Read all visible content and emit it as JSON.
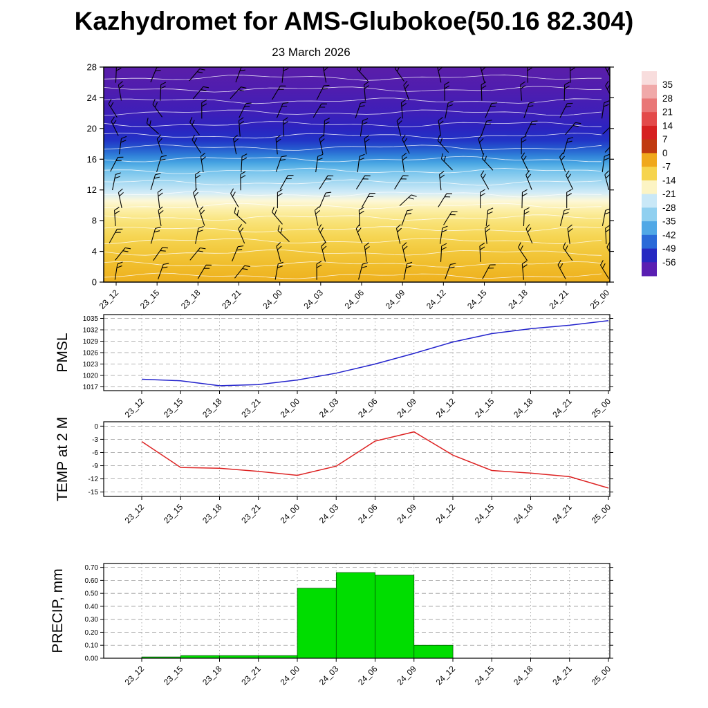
{
  "title": "Kazhydromet for AMS-Glubokoe(50.16 82.304)",
  "subtitle": "23 March 2026",
  "time_labels": [
    "23_12",
    "23_15",
    "23_18",
    "23_21",
    "24_00",
    "24_03",
    "24_06",
    "24_09",
    "24_12",
    "24_15",
    "24_18",
    "24_21",
    "25_00"
  ],
  "chart_data": [
    {
      "type": "heatmap",
      "name": "upper-air-cross-section",
      "title": "23 March 2026",
      "x": [
        "23_12",
        "23_15",
        "23_18",
        "23_21",
        "24_00",
        "24_03",
        "24_06",
        "24_09",
        "24_12",
        "24_15",
        "24_18",
        "24_21",
        "25_00"
      ],
      "ylabel": "",
      "ylim": [
        0,
        28
      ],
      "yticks": [
        0,
        4,
        8,
        12,
        16,
        20,
        24,
        28
      ],
      "overlays": [
        "white temperature contour lines",
        "black wind barbs"
      ],
      "height_color_stops": [
        {
          "h": 0,
          "color": "#eeb01e"
        },
        {
          "h": 2,
          "color": "#f0bc2a"
        },
        {
          "h": 4,
          "color": "#f2c83c"
        },
        {
          "h": 6,
          "color": "#f6d654"
        },
        {
          "h": 8,
          "color": "#f9e47c"
        },
        {
          "h": 9.5,
          "color": "#fcf0ac"
        },
        {
          "h": 10.6,
          "color": "#fdf8d8"
        },
        {
          "h": 11.6,
          "color": "#d4ecf7"
        },
        {
          "h": 13,
          "color": "#a5d9f2"
        },
        {
          "h": 14.5,
          "color": "#74c2ec"
        },
        {
          "h": 15.5,
          "color": "#47a5e2"
        },
        {
          "h": 16.5,
          "color": "#2f7fd8"
        },
        {
          "h": 17.5,
          "color": "#2456ce"
        },
        {
          "h": 18.5,
          "color": "#2233c6"
        },
        {
          "h": 20,
          "color": "#2b24c0"
        },
        {
          "h": 22,
          "color": "#3d1fb8"
        },
        {
          "h": 25,
          "color": "#4f1daf"
        },
        {
          "h": 28,
          "color": "#5a1ea9"
        }
      ],
      "colorbar": {
        "ticks": [
          35,
          28,
          21,
          14,
          7,
          0,
          -7,
          -14,
          -21,
          -28,
          -35,
          -42,
          -49,
          -56
        ],
        "segment_colors_top_to_bottom": [
          "#f8dddd",
          "#f0a9a9",
          "#e97777",
          "#e34a4a",
          "#d62020",
          "#c03a10",
          "#f0a81c",
          "#f6d44e",
          "#fcf4c4",
          "#c9e8f7",
          "#90d0f0",
          "#50a8e6",
          "#2a6ad8",
          "#2629c2",
          "#5a1fb2"
        ]
      }
    },
    {
      "type": "line",
      "name": "PMSL",
      "ylabel": "PMSL",
      "color": "#2222cc",
      "x": [
        "23_12",
        "23_15",
        "23_18",
        "23_21",
        "24_00",
        "24_03",
        "24_06",
        "24_09",
        "24_12",
        "24_15",
        "24_18",
        "24_21",
        "25_00"
      ],
      "values": [
        1019,
        1018.6,
        1017.3,
        1017.6,
        1018.8,
        1020.6,
        1023.0,
        1025.8,
        1028.8,
        1031.0,
        1032.3,
        1033.2,
        1034.4
      ],
      "yticks": [
        1017,
        1020,
        1023,
        1026,
        1029,
        1032,
        1035
      ],
      "ylim": [
        1016,
        1036
      ],
      "grid": true
    },
    {
      "type": "line",
      "name": "TEMP at 2 M",
      "ylabel": "TEMP at 2 M",
      "color": "#dd2222",
      "x": [
        "23_12",
        "23_15",
        "23_18",
        "23_21",
        "24_00",
        "24_03",
        "24_06",
        "24_09",
        "24_12",
        "24_15",
        "24_18",
        "24_21",
        "25_00"
      ],
      "values": [
        -3.5,
        -9.4,
        -9.6,
        -10.3,
        -11.2,
        -9.1,
        -3.4,
        -1.3,
        -6.6,
        -10.1,
        -10.7,
        -11.5,
        -14.1
      ],
      "yticks": [
        -15,
        -12,
        -9,
        -6,
        -3,
        0
      ],
      "ylim": [
        -16,
        1
      ],
      "grid": true
    },
    {
      "type": "bar",
      "name": "PRECIP, mm",
      "ylabel": "PRECIP, mm",
      "color": "#00dd00",
      "x": [
        "23_12",
        "23_15",
        "23_18",
        "23_21",
        "24_00",
        "24_03",
        "24_06",
        "24_09",
        "24_12",
        "24_15",
        "24_18",
        "24_21",
        "25_00"
      ],
      "values": [
        0,
        0.01,
        0.02,
        0.02,
        0.02,
        0.54,
        0.66,
        0.64,
        0.1,
        0,
        0,
        0,
        0
      ],
      "yticks": [
        0,
        0.1,
        0.2,
        0.3,
        0.4,
        0.5,
        0.6,
        0.7
      ],
      "ylim": [
        0,
        0.73
      ],
      "grid": true
    }
  ]
}
